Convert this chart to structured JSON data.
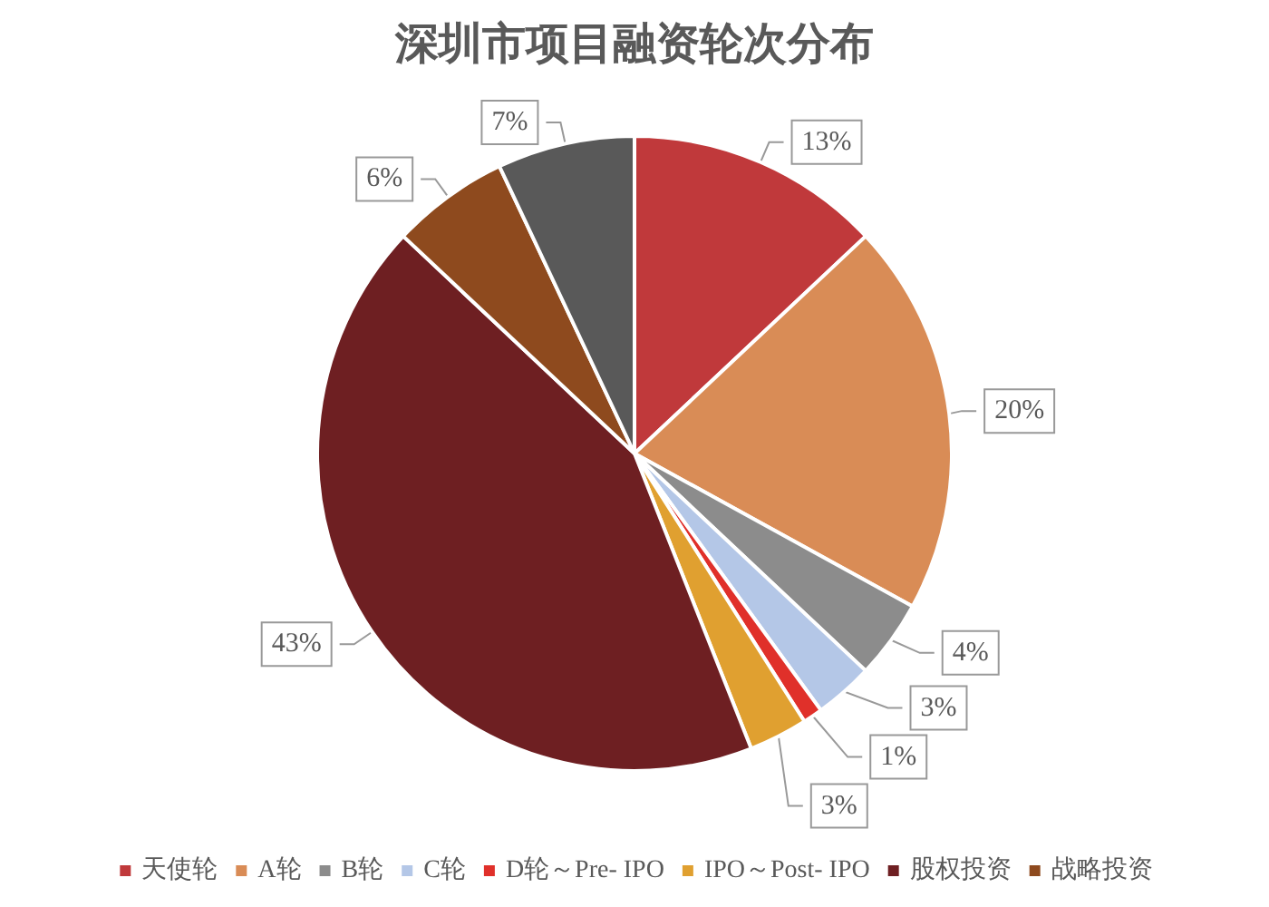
{
  "chart_data": {
    "type": "pie",
    "title": "深圳市项目融资轮次分布",
    "categories": [
      "天使轮",
      "A轮",
      "B轮",
      "C轮",
      "D轮～Pre- IPO",
      "IPO～Post- IPO",
      "股权投资",
      "战略投资",
      null
    ],
    "values": [
      13,
      20,
      4,
      3,
      1,
      3,
      43,
      6,
      7
    ],
    "value_labels": [
      "13%",
      "20%",
      "4%",
      "3%",
      "1%",
      "3%",
      "43%",
      "6%",
      "7%"
    ],
    "colors": [
      "#c0393b",
      "#d98c56",
      "#8c8c8c",
      "#b4c7e7",
      "#e0302a",
      "#e0a030",
      "#6e1f22",
      "#8e4a1e",
      "#595959"
    ],
    "legend": "bottom"
  }
}
